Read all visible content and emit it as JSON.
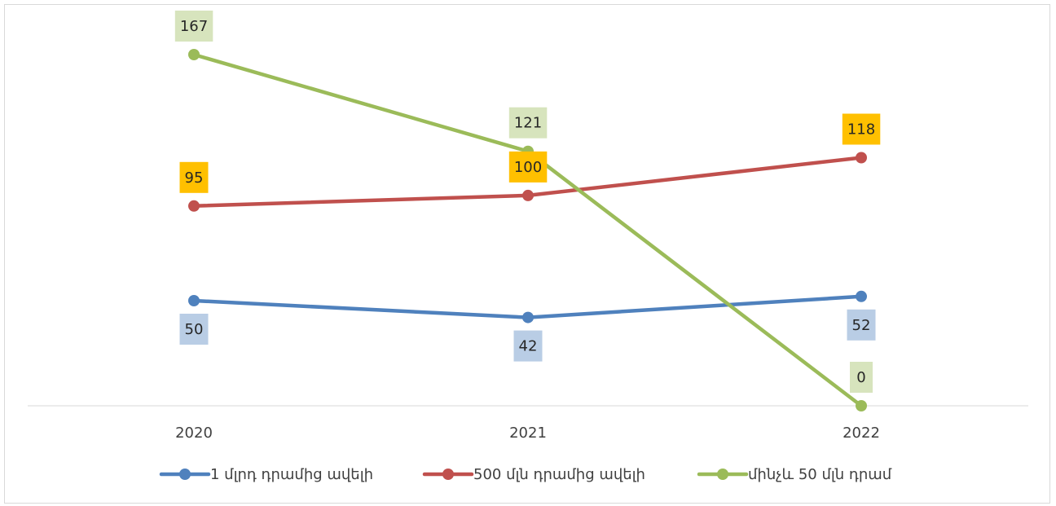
{
  "chart_data": {
    "type": "line",
    "categories": [
      "2020",
      "2021",
      "2022"
    ],
    "ylim": [
      0,
      175
    ],
    "grid": false,
    "legend_position": "bottom",
    "series": [
      {
        "name": "1 մլրդ դրամից ավելի",
        "values": [
          50,
          42,
          52
        ],
        "color": "#4f81bd",
        "label_bg": "#b9cde5",
        "label_position": "below"
      },
      {
        "name": "500 մլն դրամից ավելի",
        "values": [
          95,
          100,
          118
        ],
        "color": "#c0504d",
        "label_bg": "#ffc000",
        "label_position": "above"
      },
      {
        "name": "մինչև 50 մլն դրամ",
        "values": [
          167,
          121,
          0
        ],
        "color": "#9bbb59",
        "label_bg": "#d7e4bd",
        "label_position": "above"
      }
    ]
  }
}
